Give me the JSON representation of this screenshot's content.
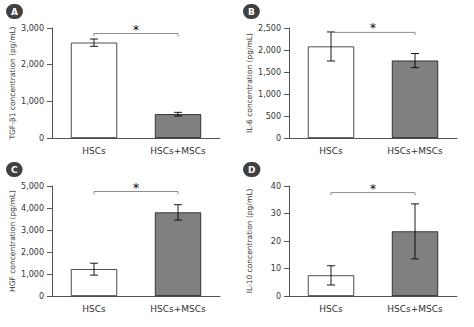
{
  "chart_data": [
    {
      "type": "bar",
      "title": "A",
      "ylabel": "TGF-β1 concentration (pg/mL)",
      "categories": [
        "HSCs",
        "HSCs+MSCs"
      ],
      "values": [
        2600,
        650
      ],
      "errors": [
        100,
        50
      ],
      "colors": [
        "white",
        "#808080"
      ],
      "ylim": [
        0,
        3000
      ],
      "yticks": [
        0,
        {
          "value": 1000,
          "label": "1,000"
        },
        {
          "value": 2000,
          "label": "2,000"
        },
        {
          "value": 3000,
          "label": "3,000"
        }
      ],
      "grid": false,
      "annotations": [
        {
          "text": "*",
          "y": 2850
        }
      ]
    },
    {
      "type": "bar",
      "title": "B",
      "ylabel": "IL-6 concentration (pg/mL)",
      "categories": [
        "HSCs",
        "HSCs+MSCs"
      ],
      "values": [
        2080,
        1760
      ],
      "errors": [
        330,
        160
      ],
      "colors": [
        "white",
        "#808080"
      ],
      "ylim": [
        0,
        2500
      ],
      "yticks": [
        0,
        500,
        {
          "value": 1000,
          "label": "1,000"
        },
        {
          "value": 1500,
          "label": "1,500"
        },
        {
          "value": 2000,
          "label": "2,000"
        },
        {
          "value": 2500,
          "label": "2,500"
        }
      ],
      "grid": false,
      "annotations": [
        {
          "text": "*",
          "y": 2400
        }
      ]
    },
    {
      "type": "bar",
      "title": "C",
      "ylabel": "HGF concentration (pg/mL)",
      "categories": [
        "HSCs",
        "HSCs+MSCs"
      ],
      "values": [
        1220,
        3800
      ],
      "errors": [
        270,
        350
      ],
      "colors": [
        "white",
        "#808080"
      ],
      "ylim": [
        0,
        5000
      ],
      "yticks": [
        0,
        {
          "value": 1000,
          "label": "1,000"
        },
        {
          "value": 2000,
          "label": "2,000"
        },
        {
          "value": 3000,
          "label": "3,000"
        },
        {
          "value": 4000,
          "label": "4,000"
        },
        {
          "value": 5000,
          "label": "5,000"
        }
      ],
      "grid": false,
      "annotations": [
        {
          "text": "*",
          "y": 4750
        }
      ]
    },
    {
      "type": "bar",
      "title": "D",
      "ylabel": "IL-10 concentration (pg/mL)",
      "categories": [
        "HSCs",
        "HSCs+MSCs"
      ],
      "values": [
        7.5,
        23.5
      ],
      "errors": [
        3.5,
        10
      ],
      "colors": [
        "white",
        "#808080"
      ],
      "ylim": [
        0,
        40
      ],
      "yticks": [
        0,
        10,
        20,
        30,
        40
      ],
      "grid": false,
      "annotations": [
        {
          "text": "*",
          "y": 37.6
        }
      ]
    }
  ]
}
